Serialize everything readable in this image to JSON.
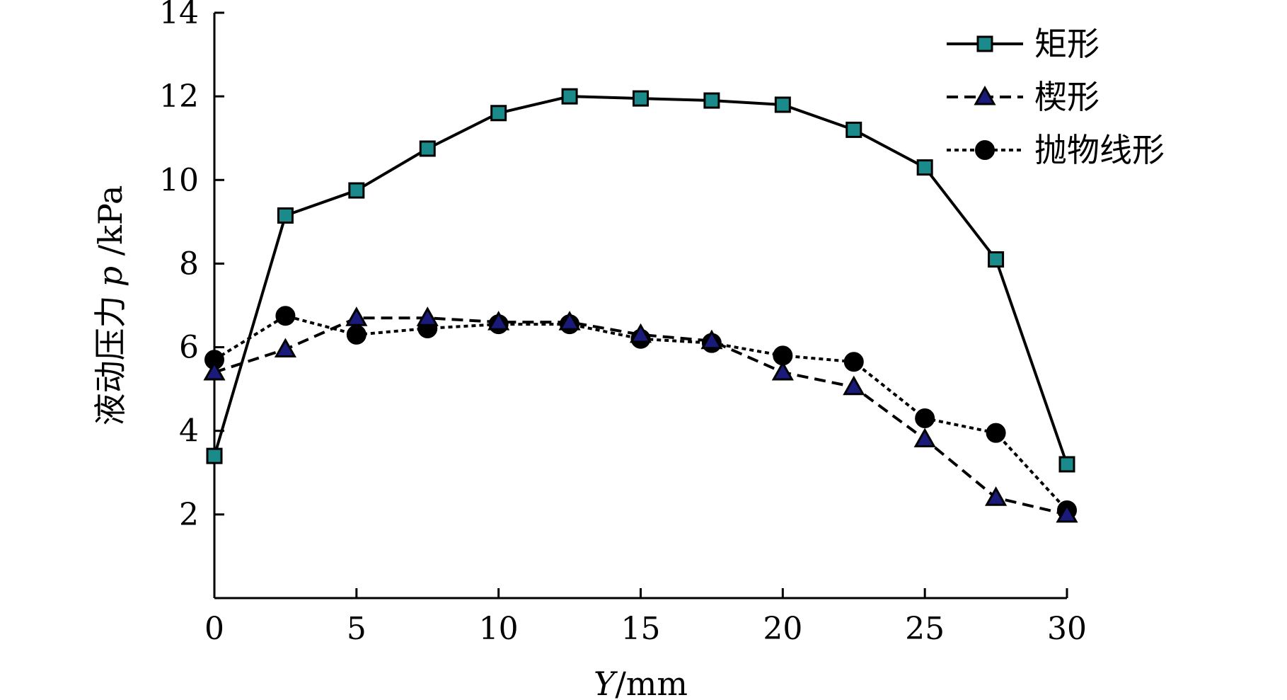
{
  "chart_data": {
    "type": "line",
    "xlabel": {
      "var": "Y",
      "unit": "/mm"
    },
    "ylabel": {
      "prefix": "液动压力",
      "var": "p",
      "unit": " /kPa"
    },
    "xlim": [
      0,
      30
    ],
    "ylim": [
      0,
      14
    ],
    "xticks": [
      0,
      5,
      10,
      15,
      20,
      25,
      30
    ],
    "yticks": [
      2,
      4,
      6,
      8,
      10,
      12,
      14
    ],
    "grid": false,
    "legend_position": "top-right",
    "x": [
      0,
      2.5,
      5,
      7.5,
      10,
      12.5,
      15,
      17.5,
      20,
      22.5,
      25,
      27.5,
      30
    ],
    "series": [
      {
        "name": "矩形",
        "marker": "square",
        "line_style": "solid",
        "marker_color": "#1a8a8a",
        "line_color": "#000000",
        "values": [
          3.4,
          9.15,
          9.75,
          10.75,
          11.6,
          12.0,
          11.95,
          11.9,
          11.8,
          11.2,
          10.3,
          8.1,
          3.2
        ]
      },
      {
        "name": "楔形",
        "marker": "triangle",
        "line_style": "dashed",
        "marker_color": "#1a1a7a",
        "line_color": "#000000",
        "values": [
          5.4,
          5.95,
          6.7,
          6.7,
          6.6,
          6.6,
          6.3,
          6.15,
          5.4,
          5.05,
          3.8,
          2.4,
          2.0
        ]
      },
      {
        "name": "抛物线形",
        "marker": "circle",
        "line_style": "dotted",
        "marker_color": "#000000",
        "line_color": "#000000",
        "values": [
          5.7,
          6.75,
          6.3,
          6.45,
          6.55,
          6.55,
          6.2,
          6.1,
          5.8,
          5.65,
          4.3,
          3.95,
          2.1
        ]
      }
    ]
  }
}
